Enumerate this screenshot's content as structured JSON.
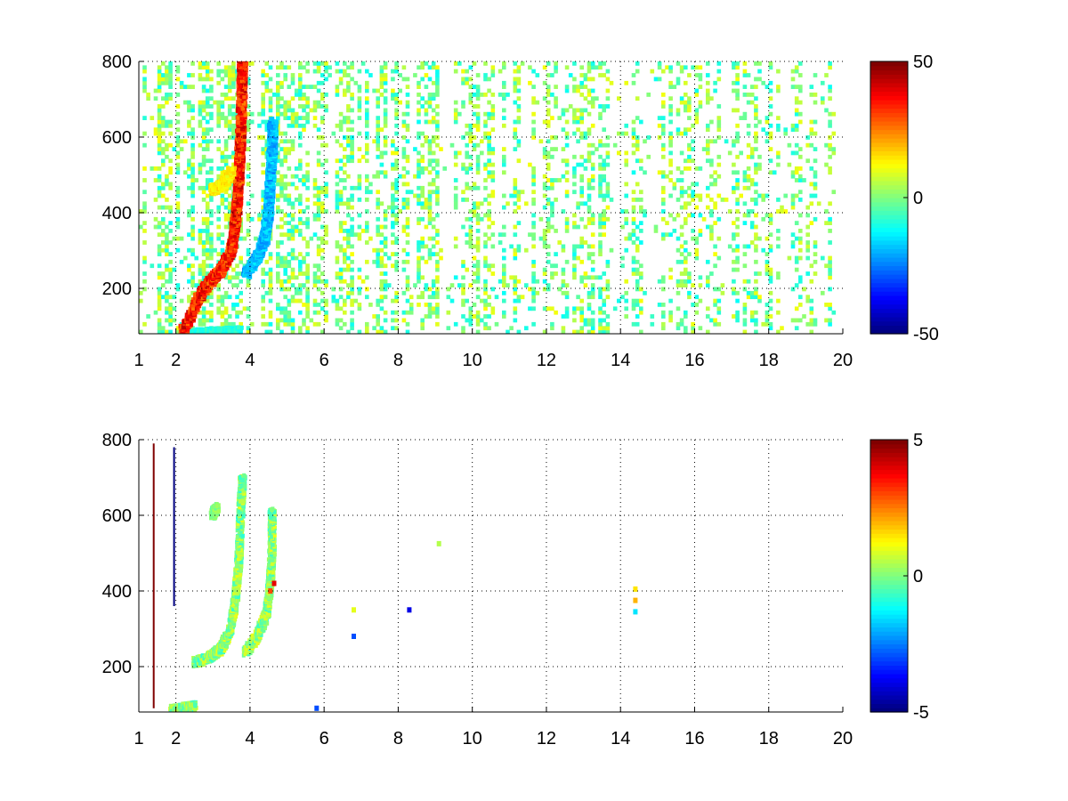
{
  "chart_data": [
    {
      "type": "heatmap",
      "title": "",
      "xlabel": "",
      "ylabel": "",
      "xlim": [
        1,
        20
      ],
      "ylim": [
        80,
        800
      ],
      "xticks": [
        1,
        2,
        4,
        6,
        8,
        10,
        12,
        14,
        16,
        18,
        20
      ],
      "yticks": [
        200,
        400,
        600,
        800
      ],
      "xtick_labels": [
        "1",
        "2",
        "4",
        "6",
        "8",
        "10",
        "12",
        "14",
        "16",
        "18",
        "20"
      ],
      "ytick_labels": [
        "200",
        "400",
        "600",
        "800"
      ],
      "grid": true,
      "colormap": "jet",
      "clim": [
        -50,
        50
      ],
      "colorbar_ticks": [
        -50,
        0,
        50
      ],
      "colorbar_tick_labels": [
        "-50",
        "0",
        "50"
      ],
      "features": [
        {
          "kind": "ridge",
          "sign": "positive",
          "peak_value": 45,
          "points": [
            [
              2.2,
              85
            ],
            [
              2.6,
              170
            ],
            [
              2.9,
              215
            ],
            [
              3.2,
              245
            ],
            [
              3.5,
              300
            ],
            [
              3.62,
              380
            ],
            [
              3.7,
              470
            ],
            [
              3.74,
              580
            ],
            [
              3.78,
              690
            ],
            [
              3.8,
              800
            ]
          ]
        },
        {
          "kind": "ridge",
          "sign": "negative",
          "peak_value": -25,
          "points": [
            [
              3.9,
              240
            ],
            [
              4.2,
              280
            ],
            [
              4.4,
              330
            ],
            [
              4.5,
              400
            ],
            [
              4.55,
              480
            ],
            [
              4.6,
              560
            ],
            [
              4.62,
              640
            ]
          ]
        },
        {
          "kind": "ridge",
          "sign": "positive",
          "peak_value": 18,
          "points": [
            [
              3.0,
              460
            ],
            [
              3.3,
              475
            ],
            [
              3.5,
              510
            ]
          ]
        },
        {
          "kind": "ridge",
          "sign": "negative",
          "peak_value": -12,
          "points": [
            [
              2.5,
              80
            ],
            [
              3.2,
              84
            ],
            [
              3.7,
              86
            ]
          ]
        }
      ],
      "background": {
        "x_range": [
          1,
          19.8
        ],
        "value_range": [
          -12,
          12
        ],
        "density_decreases_with_x": true
      }
    },
    {
      "type": "heatmap",
      "title": "",
      "xlabel": "",
      "ylabel": "",
      "xlim": [
        1,
        20
      ],
      "ylim": [
        80,
        800
      ],
      "xticks": [
        1,
        2,
        4,
        6,
        8,
        10,
        12,
        14,
        16,
        18,
        20
      ],
      "yticks": [
        200,
        400,
        600,
        800
      ],
      "xtick_labels": [
        "1",
        "2",
        "4",
        "6",
        "8",
        "10",
        "12",
        "14",
        "16",
        "18",
        "20"
      ],
      "ytick_labels": [
        "200",
        "400",
        "600",
        "800"
      ],
      "grid": true,
      "colormap": "jet",
      "clim": [
        -5,
        5
      ],
      "colorbar_ticks": [
        -5,
        0,
        5
      ],
      "colorbar_tick_labels": [
        "-5",
        "0",
        "5"
      ],
      "features": [
        {
          "kind": "ridge",
          "sign": "mixed",
          "peak_value": 1,
          "points": [
            [
              2.5,
              210
            ],
            [
              2.9,
              225
            ],
            [
              3.2,
              245
            ],
            [
              3.45,
              290
            ],
            [
              3.6,
              370
            ],
            [
              3.7,
              480
            ],
            [
              3.75,
              600
            ],
            [
              3.8,
              700
            ]
          ]
        },
        {
          "kind": "ridge",
          "sign": "mixed",
          "peak_value": 1,
          "points": [
            [
              3.9,
              240
            ],
            [
              4.2,
              280
            ],
            [
              4.45,
              340
            ],
            [
              4.55,
              420
            ],
            [
              4.6,
              510
            ],
            [
              4.6,
              610
            ]
          ]
        },
        {
          "kind": "ridge",
          "sign": "mixed",
          "peak_value": 1,
          "points": [
            [
              1.9,
              85
            ],
            [
              2.2,
              90
            ],
            [
              2.5,
              95
            ]
          ]
        },
        {
          "kind": "ridge",
          "sign": "mixed",
          "peak_value": 0.5,
          "points": [
            [
              3.0,
              600
            ],
            [
              3.1,
              620
            ]
          ]
        }
      ],
      "lines": [
        {
          "x": 1.4,
          "y_range": [
            90,
            790
          ],
          "value": 5
        },
        {
          "x": 1.95,
          "y_range": [
            360,
            780
          ],
          "value": -5
        }
      ],
      "points": [
        {
          "x": 4.65,
          "y": 420,
          "value": 4
        },
        {
          "x": 4.55,
          "y": 400,
          "value": 3
        },
        {
          "x": 6.8,
          "y": 350,
          "value": 1
        },
        {
          "x": 6.8,
          "y": 280,
          "value": -3
        },
        {
          "x": 8.3,
          "y": 350,
          "value": -4
        },
        {
          "x": 9.1,
          "y": 525,
          "value": 0.5
        },
        {
          "x": 14.4,
          "y": 405,
          "value": 1.5
        },
        {
          "x": 14.4,
          "y": 375,
          "value": 2
        },
        {
          "x": 14.4,
          "y": 345,
          "value": -1.5
        },
        {
          "x": 5.8,
          "y": 90,
          "value": -3
        }
      ]
    }
  ]
}
